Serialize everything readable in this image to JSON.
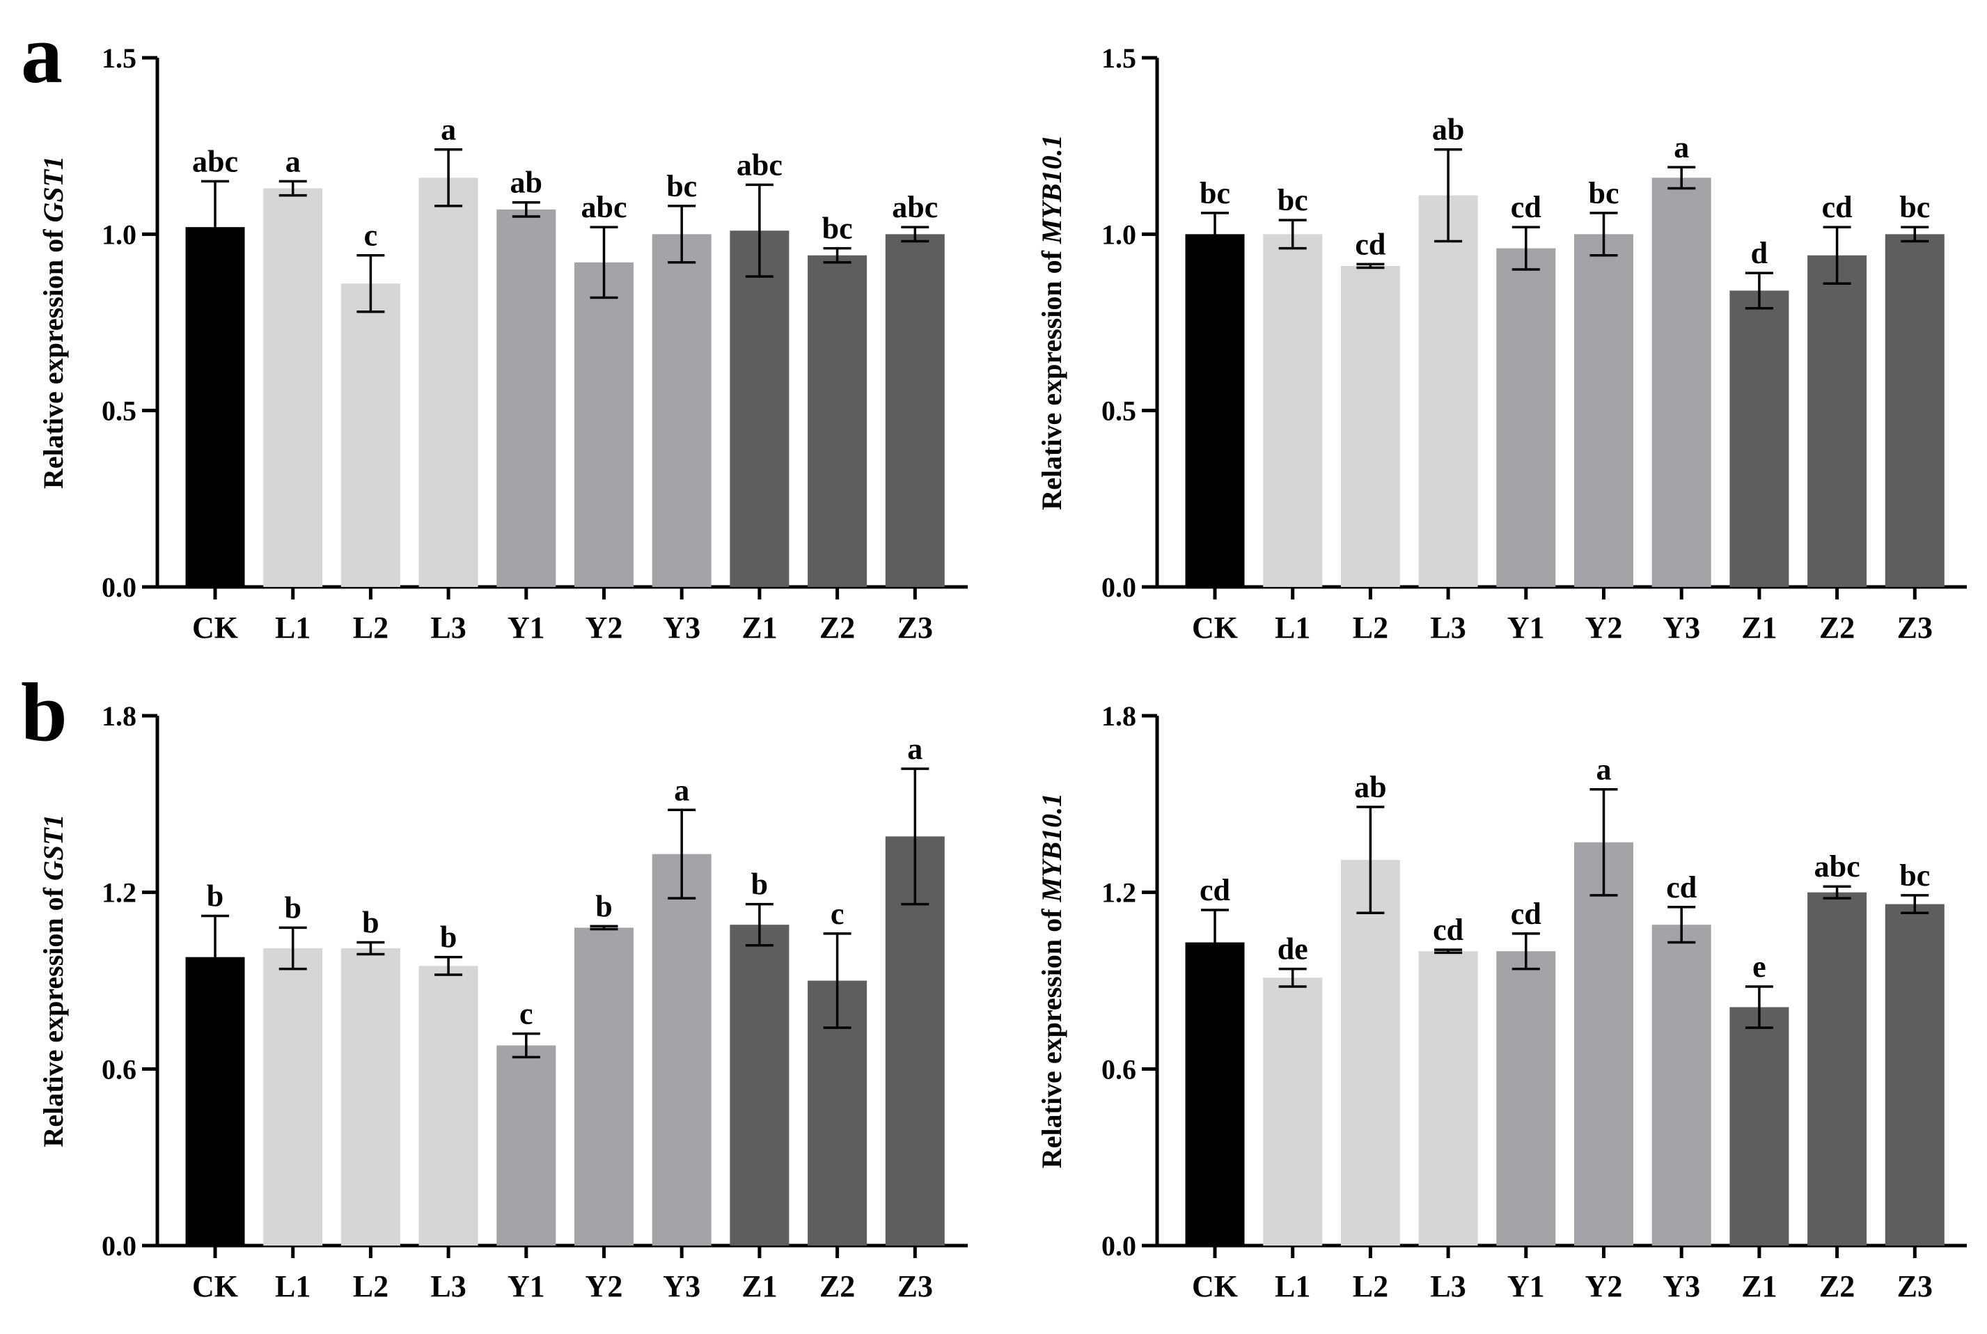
{
  "figure": {
    "panel_labels": [
      "a",
      "b"
    ],
    "colors": {
      "CK": "#000000",
      "L": "#d6d6d6",
      "Y": "#a4a4a8",
      "Z": "#5e5e5e"
    }
  },
  "chart_data": [
    {
      "type": "bar",
      "panel": "a",
      "categories": [
        "CK",
        "L1",
        "L2",
        "L3",
        "Y1",
        "Y2",
        "Y3",
        "Z1",
        "Z2",
        "Z3"
      ],
      "values": [
        1.02,
        1.13,
        0.86,
        1.16,
        1.07,
        0.92,
        1.0,
        1.01,
        0.94,
        1.0
      ],
      "errors": [
        0.13,
        0.02,
        0.08,
        0.08,
        0.02,
        0.1,
        0.08,
        0.13,
        0.02,
        0.02
      ],
      "significance": [
        "abc",
        "a",
        "c",
        "a",
        "ab",
        "abc",
        "bc",
        "abc",
        "bc",
        "abc"
      ],
      "ylabel_prefix": "Relative expression of ",
      "ylabel_gene": "GST1",
      "ylim": [
        0,
        1.5
      ],
      "yticks": [
        "0.0",
        "0.5",
        "1.0",
        "1.5"
      ],
      "ytick_values": [
        0,
        0.5,
        1.0,
        1.5
      ]
    },
    {
      "type": "bar",
      "panel": "a",
      "categories": [
        "CK",
        "L1",
        "L2",
        "L3",
        "Y1",
        "Y2",
        "Y3",
        "Z1",
        "Z2",
        "Z3"
      ],
      "values": [
        1.0,
        1.0,
        0.91,
        1.11,
        0.96,
        1.0,
        1.16,
        0.84,
        0.94,
        1.0
      ],
      "errors": [
        0.06,
        0.04,
        0.005,
        0.13,
        0.06,
        0.06,
        0.03,
        0.05,
        0.08,
        0.02
      ],
      "significance": [
        "bc",
        "bc",
        "cd",
        "ab",
        "cd",
        "bc",
        "a",
        "d",
        "cd",
        "bc"
      ],
      "ylabel_prefix": "Relative expression of ",
      "ylabel_gene": "MYB10.1",
      "ylim": [
        0,
        1.5
      ],
      "yticks": [
        "0.0",
        "0.5",
        "1.0",
        "1.5"
      ],
      "ytick_values": [
        0,
        0.5,
        1.0,
        1.5
      ]
    },
    {
      "type": "bar",
      "panel": "b",
      "categories": [
        "CK",
        "L1",
        "L2",
        "L3",
        "Y1",
        "Y2",
        "Y3",
        "Z1",
        "Z2",
        "Z3"
      ],
      "values": [
        0.98,
        1.01,
        1.01,
        0.95,
        0.68,
        1.08,
        1.33,
        1.09,
        0.9,
        1.39
      ],
      "errors": [
        0.14,
        0.07,
        0.02,
        0.03,
        0.04,
        0.005,
        0.15,
        0.07,
        0.16,
        0.23
      ],
      "significance": [
        "b",
        "b",
        "b",
        "b",
        "c",
        "b",
        "a",
        "b",
        "c",
        "a"
      ],
      "ylabel_prefix": "Relative expression of ",
      "ylabel_gene": "GST1",
      "ylim": [
        0,
        1.8
      ],
      "yticks": [
        "0.0",
        "0.6",
        "1.2",
        "1.8"
      ],
      "ytick_values": [
        0,
        0.6,
        1.2,
        1.8
      ]
    },
    {
      "type": "bar",
      "panel": "b",
      "categories": [
        "CK",
        "L1",
        "L2",
        "L3",
        "Y1",
        "Y2",
        "Y3",
        "Z1",
        "Z2",
        "Z3"
      ],
      "values": [
        1.03,
        0.91,
        1.31,
        1.0,
        1.0,
        1.37,
        1.09,
        0.81,
        1.2,
        1.16
      ],
      "errors": [
        0.11,
        0.03,
        0.18,
        0.005,
        0.06,
        0.18,
        0.06,
        0.07,
        0.02,
        0.03
      ],
      "significance": [
        "cd",
        "de",
        "ab",
        "cd",
        "cd",
        "a",
        "cd",
        "e",
        "abc",
        "bc"
      ],
      "ylabel_prefix": "Relative expression of ",
      "ylabel_gene": "MYB10.1",
      "ylim": [
        0,
        1.8
      ],
      "yticks": [
        "0.0",
        "0.6",
        "1.2",
        "1.8"
      ],
      "ytick_values": [
        0,
        0.6,
        1.2,
        1.8
      ]
    }
  ]
}
